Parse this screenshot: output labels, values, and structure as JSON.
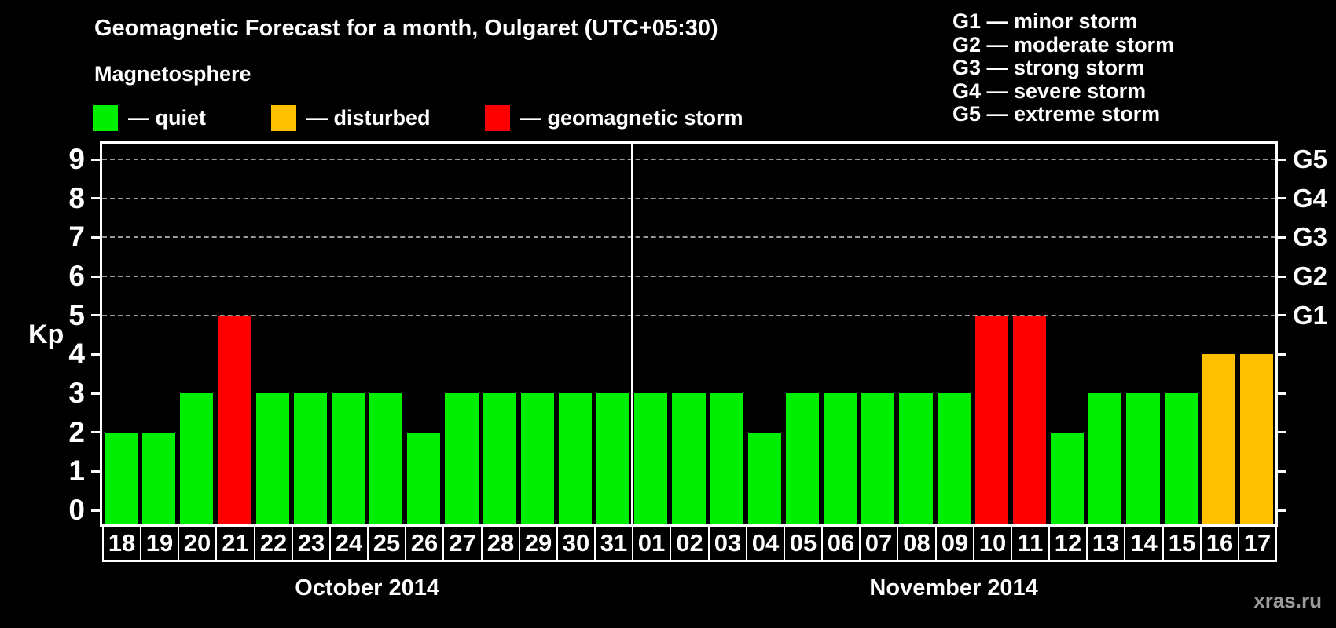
{
  "title": "Geomagnetic Forecast for a month, Oulgaret (UTC+05:30)",
  "subtitle": "Magnetosphere",
  "watermark": "xras.ru",
  "status_legend": [
    {
      "key": "quiet",
      "label": "— quiet",
      "color": "#00EE00"
    },
    {
      "key": "disturbed",
      "label": "— disturbed",
      "color": "#FFC000"
    },
    {
      "key": "storm",
      "label": "— geomagnetic storm",
      "color": "#FF0000"
    }
  ],
  "g_scale_legend": [
    "G1 — minor storm",
    "G2 — moderate storm",
    "G3 — strong storm",
    "G4 — severe storm",
    "G5 — extreme storm"
  ],
  "y_axis": {
    "label": "Kp",
    "ticks": [
      0,
      1,
      2,
      3,
      4,
      5,
      6,
      7,
      8,
      9
    ]
  },
  "right_axis": {
    "labels": [
      {
        "kp": 5,
        "text": "G1"
      },
      {
        "kp": 6,
        "text": "G2"
      },
      {
        "kp": 7,
        "text": "G3"
      },
      {
        "kp": 8,
        "text": "G4"
      },
      {
        "kp": 9,
        "text": "G5"
      }
    ]
  },
  "chart_data": {
    "type": "bar",
    "title": "Geomagnetic Forecast for a month, Oulgaret (UTC+05:30)",
    "xlabel": "",
    "ylabel": "Kp",
    "ylim": [
      0,
      9
    ],
    "gridlines_at_kp": [
      5,
      6,
      7,
      8,
      9
    ],
    "grid": "dashed-horizontal",
    "legend_position": "top-left",
    "months": [
      {
        "label": "October 2014",
        "days": [
          {
            "day": "18",
            "kp": 2,
            "status": "quiet"
          },
          {
            "day": "19",
            "kp": 2,
            "status": "quiet"
          },
          {
            "day": "20",
            "kp": 3,
            "status": "quiet"
          },
          {
            "day": "21",
            "kp": 5,
            "status": "storm"
          },
          {
            "day": "22",
            "kp": 3,
            "status": "quiet"
          },
          {
            "day": "23",
            "kp": 3,
            "status": "quiet"
          },
          {
            "day": "24",
            "kp": 3,
            "status": "quiet"
          },
          {
            "day": "25",
            "kp": 3,
            "status": "quiet"
          },
          {
            "day": "26",
            "kp": 2,
            "status": "quiet"
          },
          {
            "day": "27",
            "kp": 3,
            "status": "quiet"
          },
          {
            "day": "28",
            "kp": 3,
            "status": "quiet"
          },
          {
            "day": "29",
            "kp": 3,
            "status": "quiet"
          },
          {
            "day": "30",
            "kp": 3,
            "status": "quiet"
          },
          {
            "day": "31",
            "kp": 3,
            "status": "quiet"
          }
        ]
      },
      {
        "label": "November 2014",
        "days": [
          {
            "day": "01",
            "kp": 3,
            "status": "quiet"
          },
          {
            "day": "02",
            "kp": 3,
            "status": "quiet"
          },
          {
            "day": "03",
            "kp": 3,
            "status": "quiet"
          },
          {
            "day": "04",
            "kp": 2,
            "status": "quiet"
          },
          {
            "day": "05",
            "kp": 3,
            "status": "quiet"
          },
          {
            "day": "06",
            "kp": 3,
            "status": "quiet"
          },
          {
            "day": "07",
            "kp": 3,
            "status": "quiet"
          },
          {
            "day": "08",
            "kp": 3,
            "status": "quiet"
          },
          {
            "day": "09",
            "kp": 3,
            "status": "quiet"
          },
          {
            "day": "10",
            "kp": 5,
            "status": "storm"
          },
          {
            "day": "11",
            "kp": 5,
            "status": "storm"
          },
          {
            "day": "12",
            "kp": 2,
            "status": "quiet"
          },
          {
            "day": "13",
            "kp": 3,
            "status": "quiet"
          },
          {
            "day": "14",
            "kp": 3,
            "status": "quiet"
          },
          {
            "day": "15",
            "kp": 3,
            "status": "quiet"
          },
          {
            "day": "16",
            "kp": 4,
            "status": "disturbed"
          },
          {
            "day": "17",
            "kp": 4,
            "status": "disturbed"
          }
        ]
      }
    ]
  }
}
